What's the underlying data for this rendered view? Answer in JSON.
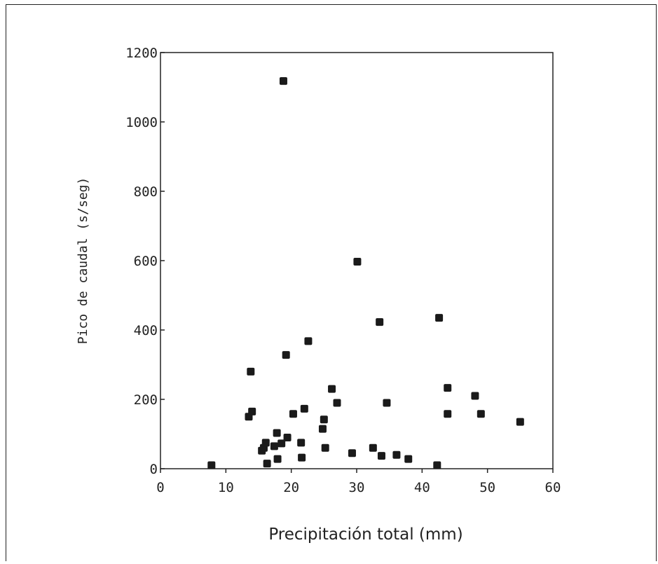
{
  "chart_data": {
    "type": "scatter",
    "title": "",
    "xlabel": "Precipitación total (mm)",
    "ylabel": "Pico de caudal (s/seg)",
    "xlim": [
      0,
      60
    ],
    "ylim": [
      0,
      1200
    ],
    "xticks": [
      "0",
      "10",
      "20",
      "30",
      "40",
      "50",
      "60"
    ],
    "yticks": [
      "0",
      "200",
      "400",
      "600",
      "800",
      "1000",
      "1200"
    ],
    "grid": false,
    "marker_color": "#1a1a1a",
    "points": [
      {
        "x": 7.8,
        "y": 10
      },
      {
        "x": 13.5,
        "y": 150
      },
      {
        "x": 13.8,
        "y": 280
      },
      {
        "x": 14.0,
        "y": 165
      },
      {
        "x": 15.5,
        "y": 52
      },
      {
        "x": 15.8,
        "y": 60
      },
      {
        "x": 16.1,
        "y": 75
      },
      {
        "x": 16.3,
        "y": 15
      },
      {
        "x": 17.4,
        "y": 65
      },
      {
        "x": 17.8,
        "y": 103
      },
      {
        "x": 17.9,
        "y": 28
      },
      {
        "x": 18.5,
        "y": 73
      },
      {
        "x": 18.8,
        "y": 1118
      },
      {
        "x": 19.2,
        "y": 328
      },
      {
        "x": 19.4,
        "y": 90
      },
      {
        "x": 20.3,
        "y": 158
      },
      {
        "x": 21.5,
        "y": 75
      },
      {
        "x": 21.6,
        "y": 32
      },
      {
        "x": 22.0,
        "y": 173
      },
      {
        "x": 22.6,
        "y": 368
      },
      {
        "x": 24.8,
        "y": 115
      },
      {
        "x": 25.0,
        "y": 142
      },
      {
        "x": 25.2,
        "y": 60
      },
      {
        "x": 26.2,
        "y": 230
      },
      {
        "x": 27.0,
        "y": 190
      },
      {
        "x": 29.3,
        "y": 45
      },
      {
        "x": 30.1,
        "y": 597
      },
      {
        "x": 32.5,
        "y": 60
      },
      {
        "x": 33.5,
        "y": 423
      },
      {
        "x": 33.8,
        "y": 37
      },
      {
        "x": 34.6,
        "y": 190
      },
      {
        "x": 36.1,
        "y": 40
      },
      {
        "x": 37.9,
        "y": 28
      },
      {
        "x": 42.3,
        "y": 10
      },
      {
        "x": 42.6,
        "y": 435
      },
      {
        "x": 43.9,
        "y": 233
      },
      {
        "x": 43.9,
        "y": 158
      },
      {
        "x": 48.1,
        "y": 210
      },
      {
        "x": 49.0,
        "y": 158
      },
      {
        "x": 55.0,
        "y": 135
      }
    ]
  }
}
